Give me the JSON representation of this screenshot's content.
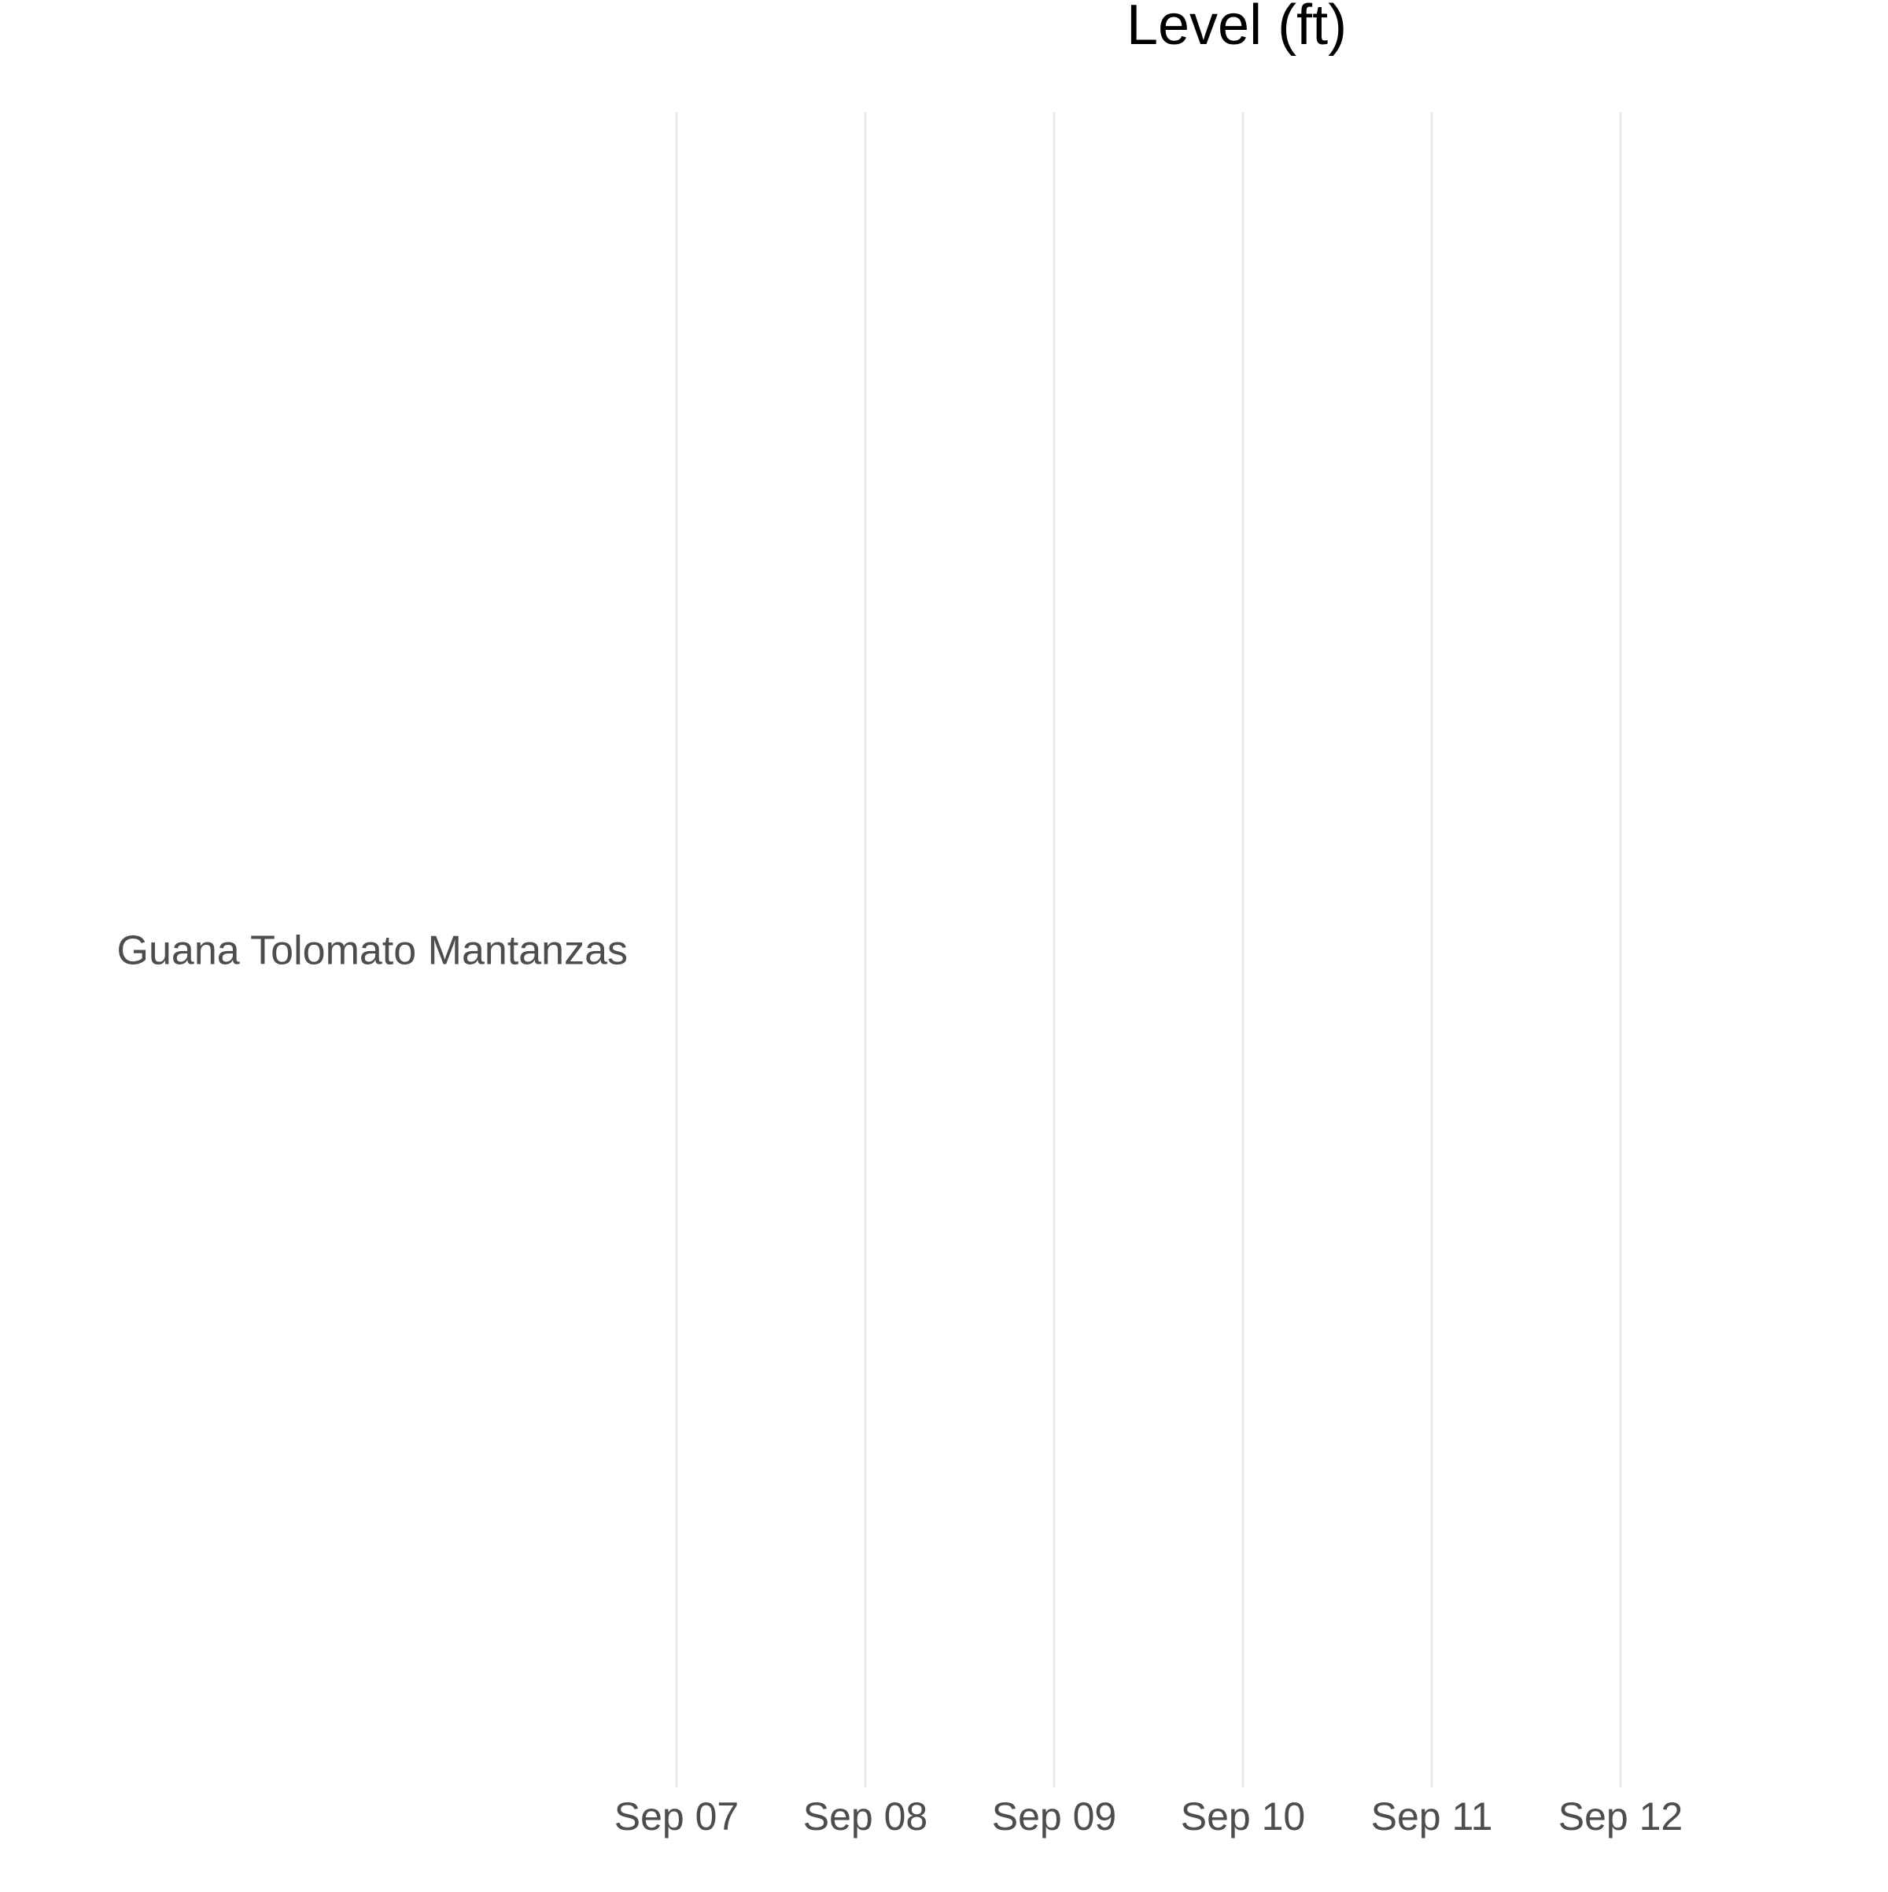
{
  "chart_data": {
    "type": "line",
    "title": "Level (ft)",
    "xlabel": "",
    "ylabel": "",
    "x_axis": {
      "scale": "date",
      "range": [
        "Sep 06 12:00",
        "Sep 12 12:00"
      ],
      "tick_labels": [
        "Sep 07",
        "Sep 08",
        "Sep 09",
        "Sep 10",
        "Sep 11",
        "Sep 12"
      ],
      "tick_positions_days": [
        1,
        2,
        3,
        4,
        5,
        6
      ]
    },
    "y_axis": {
      "scale": "categorical",
      "categories": [
        "Guana Tolomato Mantanzas"
      ]
    },
    "series": [],
    "grid": {
      "vertical_major": true,
      "horizontal": false
    },
    "legend": "none",
    "colors": {
      "grid": "#ebebeb",
      "tick_text": "#4d4d4d",
      "title": "#000000",
      "background": "#ffffff"
    }
  }
}
